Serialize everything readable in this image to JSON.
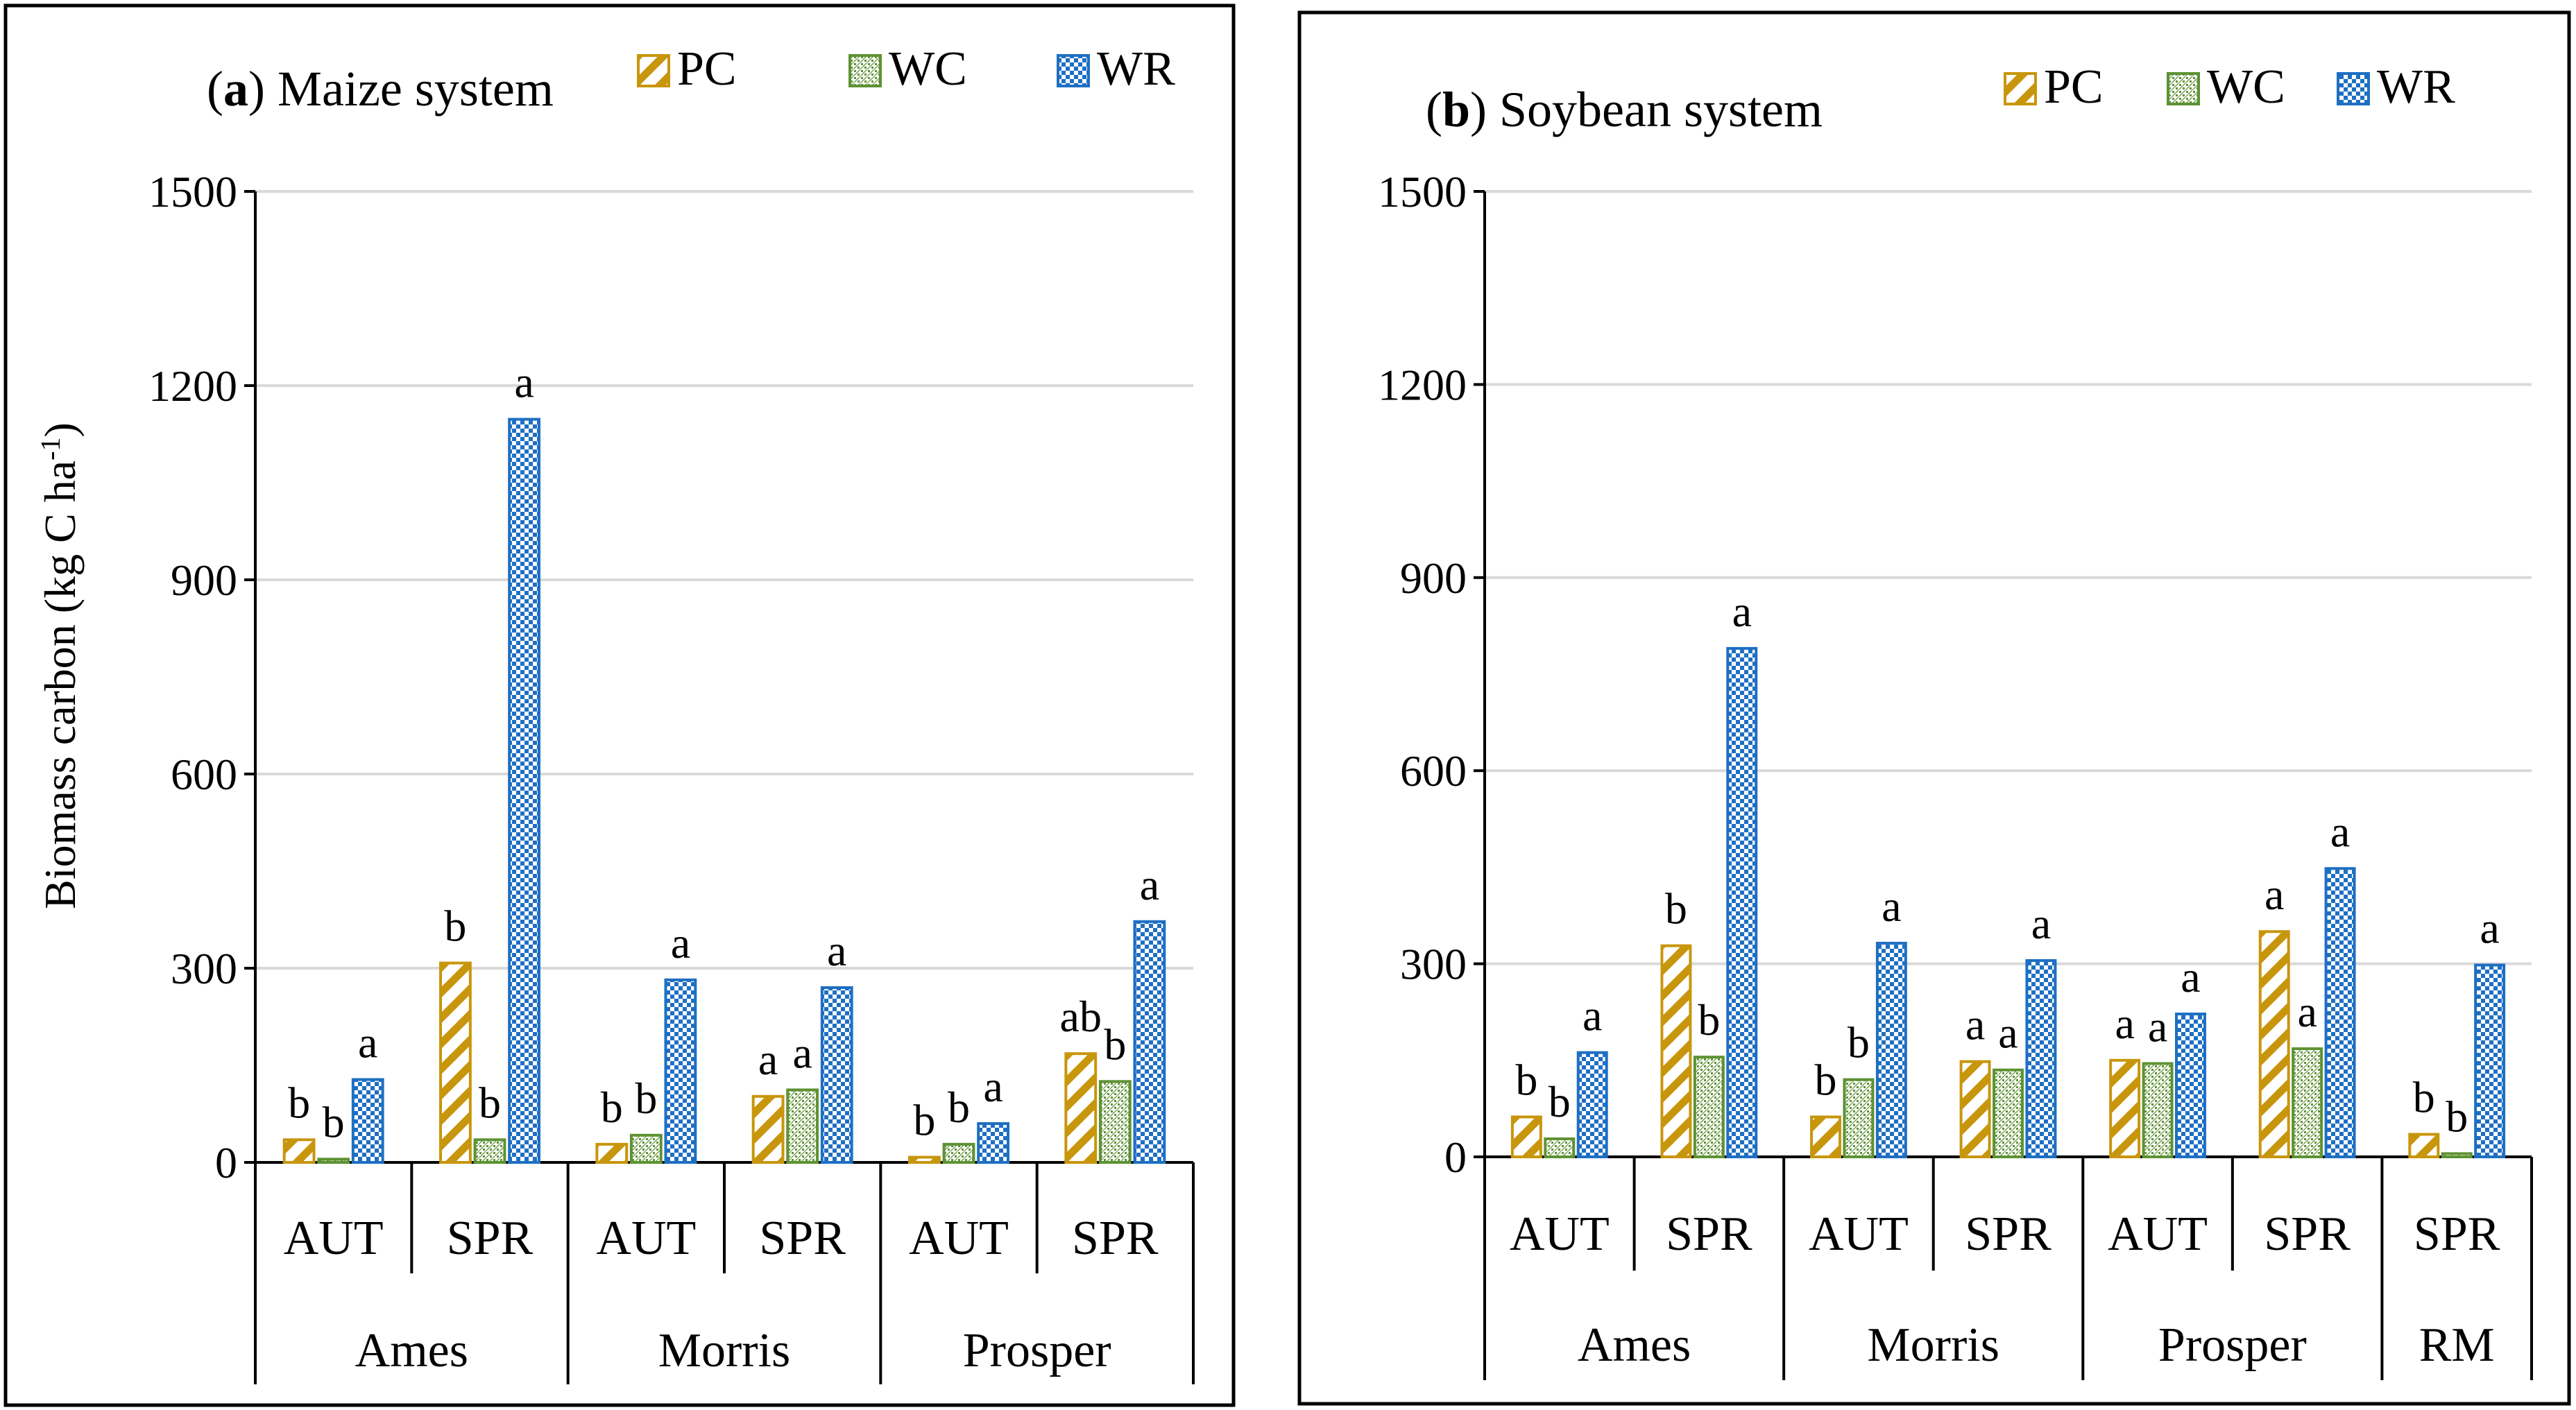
{
  "colors": {
    "pc": "#C8960C",
    "wc": "#5E9234",
    "wr": "#1E6FC3",
    "grid": "#d9d9d9",
    "frame": "#000000"
  },
  "legend": [
    {
      "key": "pc",
      "label": "PC",
      "pattern": "diagonal-stripes"
    },
    {
      "key": "wc",
      "label": "WC",
      "pattern": "dotted"
    },
    {
      "key": "wr",
      "label": "WR",
      "pattern": "checkerboard"
    }
  ],
  "y_axis_label": {
    "main": "Biomass carbon (kg C ha",
    "superscript": "-1",
    "close": ")"
  },
  "chart_data": [
    {
      "type": "bar",
      "panel_letter": "a",
      "title": "Maize system",
      "ylim": [
        0,
        1500
      ],
      "yticks": [
        "0",
        "300",
        "600",
        "900",
        "1200",
        "1500"
      ],
      "grid": true,
      "legend_position": "top-right",
      "series_names": [
        "PC",
        "WC",
        "WR"
      ],
      "sites": [
        {
          "name": "Ames",
          "groups": [
            {
              "season": "AUT",
              "values": [
                35,
                5,
                128
              ],
              "letters": [
                "b",
                "b",
                "a"
              ]
            },
            {
              "season": "SPR",
              "values": [
                308,
                35,
                1148
              ],
              "letters": [
                "b",
                "b",
                "a"
              ]
            }
          ]
        },
        {
          "name": "Morris",
          "groups": [
            {
              "season": "AUT",
              "values": [
                28,
                42,
                282
              ],
              "letters": [
                "b",
                "b",
                "a"
              ]
            },
            {
              "season": "SPR",
              "values": [
                102,
                112,
                270
              ],
              "letters": [
                "a",
                "a",
                "a"
              ]
            }
          ]
        },
        {
          "name": "Prosper",
          "groups": [
            {
              "season": "AUT",
              "values": [
                8,
                28,
                60
              ],
              "letters": [
                "b",
                "b",
                "a"
              ]
            },
            {
              "season": "SPR",
              "values": [
                168,
                125,
                372
              ],
              "letters": [
                "ab",
                "b",
                "a"
              ]
            }
          ]
        }
      ]
    },
    {
      "type": "bar",
      "panel_letter": "b",
      "title": "Soybean system",
      "ylim": [
        0,
        1500
      ],
      "yticks": [
        "0",
        "300",
        "600",
        "900",
        "1200",
        "1500"
      ],
      "grid": true,
      "legend_position": "top-right",
      "series_names": [
        "PC",
        "WC",
        "WR"
      ],
      "sites": [
        {
          "name": "Ames",
          "groups": [
            {
              "season": "AUT",
              "values": [
                62,
                28,
                162
              ],
              "letters": [
                "b",
                "b",
                "a"
              ]
            },
            {
              "season": "SPR",
              "values": [
                328,
                155,
                790
              ],
              "letters": [
                "b",
                "b",
                "a"
              ]
            }
          ]
        },
        {
          "name": "Morris",
          "groups": [
            {
              "season": "AUT",
              "values": [
                62,
                120,
                332
              ],
              "letters": [
                "b",
                "b",
                "a"
              ]
            },
            {
              "season": "SPR",
              "values": [
                148,
                135,
                305
              ],
              "letters": [
                "a",
                "a",
                "a"
              ]
            }
          ]
        },
        {
          "name": "Prosper",
          "groups": [
            {
              "season": "AUT",
              "values": [
                150,
                145,
                222
              ],
              "letters": [
                "a",
                "a",
                "a"
              ]
            },
            {
              "season": "SPR",
              "values": [
                350,
                168,
                448
              ],
              "letters": [
                "a",
                "a",
                "a"
              ]
            }
          ]
        },
        {
          "name": "RM",
          "groups": [
            {
              "season": "SPR",
              "values": [
                35,
                5,
                298
              ],
              "letters": [
                "b",
                "b",
                "a"
              ]
            }
          ]
        }
      ]
    }
  ]
}
